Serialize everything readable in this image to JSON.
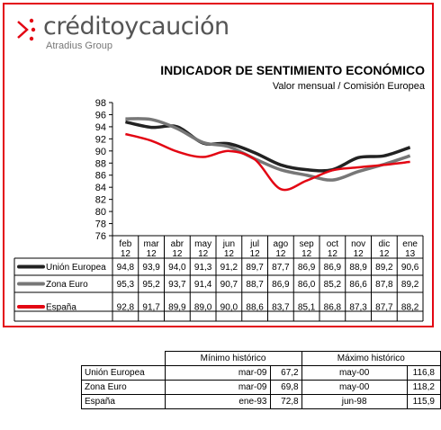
{
  "logo": {
    "name": "créditoycaución",
    "subtitle": "Atradius Group"
  },
  "colors": {
    "border": "#e30613",
    "union_europea": "#222222",
    "zona_euro": "#777777",
    "espana": "#e30613"
  },
  "chart_data": {
    "type": "line",
    "title": "INDICADOR DE SENTIMIENTO ECONÓMICO",
    "subtitle": "Valor mensual / Comisión Europea",
    "categories": [
      [
        "feb",
        "12"
      ],
      [
        "mar",
        "12"
      ],
      [
        "abr",
        "12"
      ],
      [
        "may",
        "12"
      ],
      [
        "jun",
        "12"
      ],
      [
        "jul",
        "12"
      ],
      [
        "ago",
        "12"
      ],
      [
        "sep",
        "12"
      ],
      [
        "oct",
        "12"
      ],
      [
        "nov",
        "12"
      ],
      [
        "dic",
        "12"
      ],
      [
        "ene",
        "13"
      ]
    ],
    "ylim": [
      76,
      98
    ],
    "yticks": [
      76,
      78,
      80,
      82,
      84,
      86,
      88,
      90,
      92,
      94,
      96,
      98
    ],
    "grid": false,
    "legend": "bottom-table",
    "series": [
      {
        "name": "Unión Europea",
        "color": "#222222",
        "values": [
          94.8,
          93.9,
          94.0,
          91.3,
          91.2,
          89.7,
          87.7,
          86.9,
          86.9,
          88.9,
          89.2,
          90.6
        ]
      },
      {
        "name": "Zona Euro",
        "color": "#777777",
        "values": [
          95.3,
          95.2,
          93.7,
          91.4,
          90.7,
          88.7,
          86.9,
          86.0,
          85.2,
          86.6,
          87.8,
          89.2
        ]
      },
      {
        "name": "España",
        "color": "#e30613",
        "values": [
          92.8,
          91.7,
          89.9,
          89.0,
          90.0,
          88.6,
          83.7,
          85.1,
          86.8,
          87.3,
          87.7,
          88.2
        ]
      }
    ],
    "display_values": [
      [
        "94,8",
        "93,9",
        "94,0",
        "91,3",
        "91,2",
        "89,7",
        "87,7",
        "86,9",
        "86,9",
        "88,9",
        "89,2",
        "90,6"
      ],
      [
        "95,3",
        "95,2",
        "93,7",
        "91,4",
        "90,7",
        "88,7",
        "86,9",
        "86,0",
        "85,2",
        "86,6",
        "87,8",
        "89,2"
      ],
      [
        "92,8",
        "91,7",
        "89,9",
        "89,0",
        "90,0",
        "88,6",
        "83,7",
        "85,1",
        "86,8",
        "87,3",
        "87,7",
        "88,2"
      ]
    ]
  },
  "history_table": {
    "headers": [
      "Mínimo histórico",
      "Máximo histórico"
    ],
    "rows": [
      {
        "name": "Unión Europea",
        "min_date": "mar-09",
        "min_value": "67,2",
        "max_date": "may-00",
        "max_value": "116,8"
      },
      {
        "name": "Zona Euro",
        "min_date": "mar-09",
        "min_value": "69,8",
        "max_date": "may-00",
        "max_value": "118,2"
      },
      {
        "name": "España",
        "min_date": "ene-93",
        "min_value": "72,8",
        "max_date": "jun-98",
        "max_value": "115,9"
      }
    ]
  }
}
